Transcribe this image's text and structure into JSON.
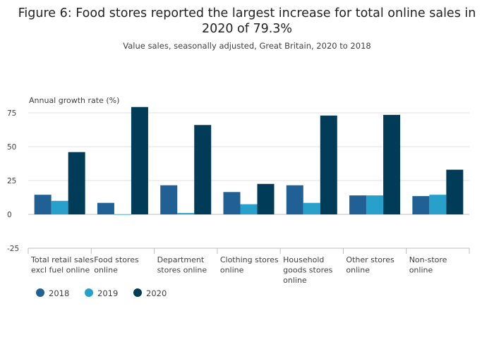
{
  "chart_data": {
    "type": "bar",
    "title_lines": [
      "Figure 6: Food stores reported the largest increase for total online sales in",
      "2020 of 79.3%"
    ],
    "subtitle": "Value sales, seasonally adjusted, Great Britain, 2020 to 2018",
    "ylabel": "Annual growth rate (%)",
    "xlabel": "",
    "ylim": [
      -25,
      75
    ],
    "yticks": [
      75,
      50,
      25,
      0,
      -25
    ],
    "grid": true,
    "legend_position": "bottom-left",
    "categories": [
      [
        "Total retail sales",
        "excl fuel online"
      ],
      [
        "Food stores",
        "online"
      ],
      [
        "Department",
        "stores online"
      ],
      [
        "Clothing stores",
        "online"
      ],
      [
        "Household",
        "goods stores",
        "online"
      ],
      [
        "Other stores",
        "online"
      ],
      [
        "Non-store",
        "online"
      ]
    ],
    "series": [
      {
        "name": "2018",
        "color": "#206095",
        "values": [
          14.5,
          8.5,
          21.5,
          16.5,
          21.5,
          14,
          13.5
        ]
      },
      {
        "name": "2019",
        "color": "#27a0cc",
        "values": [
          10,
          0,
          1,
          7.5,
          8.5,
          14,
          14.5
        ]
      },
      {
        "name": "2020",
        "color": "#003c57",
        "values": [
          46,
          79.3,
          66,
          22.5,
          73,
          73.5,
          33
        ]
      }
    ]
  }
}
